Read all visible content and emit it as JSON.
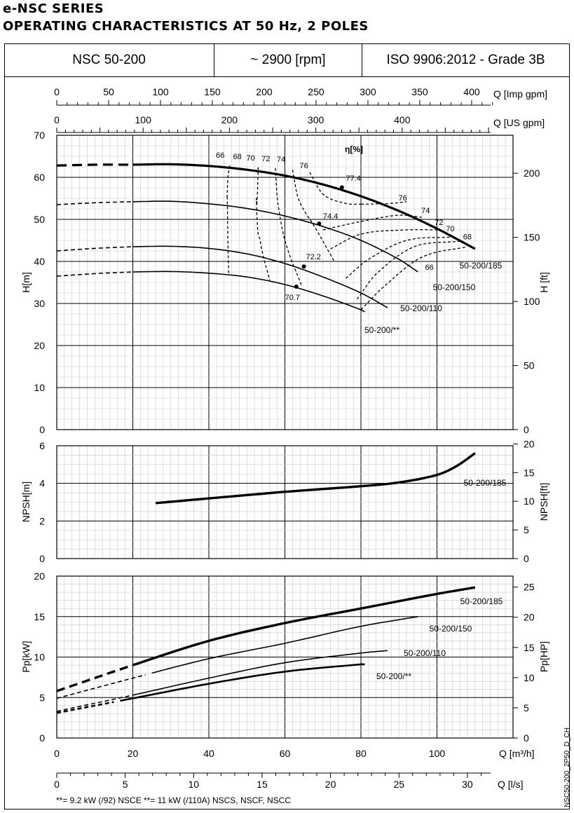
{
  "header": {
    "series": "e-NSC SERIES",
    "subtitle": "OPERATING CHARACTERISTICS AT 50 Hz, 2 POLES",
    "model": "NSC 50-200",
    "speed": "~ 2900 [rpm]",
    "standard": "ISO 9906:2012 - Grade 3B"
  },
  "footnote": "**= 9.2 kW (/92) NSCE   **= 11 kW (/110A) NSCS, NSCF, NSCC",
  "code": "NSC50-200_2P50_D_CH",
  "chart_data": [
    {
      "type": "line",
      "name": "head",
      "xlabel": "Q [m³/h]",
      "ylabel": "H[m]",
      "ylabel_right": "H [ft]",
      "xlim": [
        0,
        120
      ],
      "ylim": [
        0,
        70
      ],
      "yticks": [
        0,
        10,
        20,
        30,
        40,
        50,
        60,
        70
      ],
      "yticks_right": [
        0,
        50,
        100,
        150,
        200
      ],
      "top_axes": [
        {
          "label": "Q [Imp gpm]",
          "ticks": [
            "0",
            "50",
            "100",
            "150",
            "200",
            "250",
            "300",
            "350",
            "400"
          ]
        },
        {
          "label": "Q [US gpm]",
          "ticks": [
            "0",
            "100",
            "200",
            "300",
            "400"
          ]
        }
      ],
      "eff_label": "η[%]",
      "series": [
        {
          "name": "50-200/185",
          "x": [
            20,
            30,
            40,
            50,
            60,
            70,
            80,
            90,
            100,
            110
          ],
          "y": [
            63,
            63.1,
            62.7,
            61.8,
            60.4,
            58.3,
            55.5,
            52,
            47.8,
            43
          ]
        },
        {
          "name": "50-200/150",
          "x": [
            20,
            30,
            40,
            50,
            60,
            70,
            80,
            90,
            95
          ],
          "y": [
            54.2,
            54.3,
            53.7,
            52.6,
            50.8,
            48.3,
            45,
            40.5,
            37.5
          ]
        },
        {
          "name": "50-200/110",
          "x": [
            20,
            30,
            40,
            50,
            60,
            70,
            80,
            87
          ],
          "y": [
            43.5,
            43.6,
            43.1,
            41.8,
            39.5,
            36.3,
            32.5,
            29
          ]
        },
        {
          "name": "50-200/**",
          "x": [
            20,
            30,
            40,
            50,
            60,
            70,
            80,
            81
          ],
          "y": [
            37.5,
            37.6,
            37.2,
            36.3,
            34.5,
            31.8,
            28.5,
            28
          ]
        }
      ],
      "efficiency_labels": [
        "66",
        "68",
        "70",
        "72",
        "74",
        "76",
        "77.4",
        "76",
        "74",
        "72",
        "70",
        "68",
        "66",
        "74.4",
        "72.2",
        "70.7"
      ],
      "bep": [
        {
          "label": "77.4",
          "x": 75,
          "y": 57.6
        },
        {
          "label": "74.4",
          "x": 69,
          "y": 49
        },
        {
          "label": "72.2",
          "x": 65,
          "y": 38.8
        },
        {
          "label": "70.7",
          "x": 63,
          "y": 34
        }
      ]
    },
    {
      "type": "line",
      "name": "npsh",
      "ylabel": "NPSH[m]",
      "ylabel_right": "NPSH[ft]",
      "xlim": [
        0,
        120
      ],
      "ylim": [
        0,
        6
      ],
      "yticks": [
        0,
        2,
        4,
        6
      ],
      "yticks_right": [
        0,
        5,
        10,
        15,
        20
      ],
      "series": [
        {
          "name": "50-200/185",
          "x": [
            26,
            40,
            60,
            80,
            90,
            100,
            105,
            110
          ],
          "y": [
            2.95,
            3.2,
            3.55,
            3.85,
            4.05,
            4.45,
            4.9,
            5.6
          ]
        }
      ]
    },
    {
      "type": "line",
      "name": "power",
      "ylabel": "Pp[kW]",
      "ylabel_right": "Pp[HP]",
      "xlabel": "Q [m³/h]",
      "xlabel_bottom": "Q [l/s]",
      "xlim": [
        0,
        120
      ],
      "ylim": [
        0,
        20
      ],
      "xticks": [
        0,
        20,
        40,
        60,
        80,
        100
      ],
      "xticks_bottom": [
        "0",
        "5",
        "10",
        "15",
        "20",
        "25",
        "30"
      ],
      "yticks": [
        0,
        5,
        10,
        15,
        20
      ],
      "yticks_right": [
        0,
        5,
        10,
        15,
        20,
        25
      ],
      "series": [
        {
          "name": "50-200/185",
          "x": [
            0,
            20,
            40,
            60,
            80,
            100,
            110
          ],
          "y": [
            5.8,
            9,
            12,
            14.2,
            16,
            17.8,
            18.6
          ]
        },
        {
          "name": "50-200/150",
          "x": [
            0,
            20,
            40,
            60,
            80,
            95
          ],
          "y": [
            4.9,
            7.4,
            9.8,
            11.7,
            13.8,
            15
          ]
        },
        {
          "name": "50-200/110",
          "x": [
            0,
            20,
            40,
            60,
            80,
            87
          ],
          "y": [
            3.3,
            5.3,
            7.4,
            9.3,
            10.5,
            10.8
          ]
        },
        {
          "name": "50-200/**",
          "x": [
            0,
            20,
            40,
            60,
            80,
            81
          ],
          "y": [
            3.1,
            4.9,
            6.7,
            8.2,
            9.1,
            9.1
          ]
        }
      ]
    }
  ]
}
